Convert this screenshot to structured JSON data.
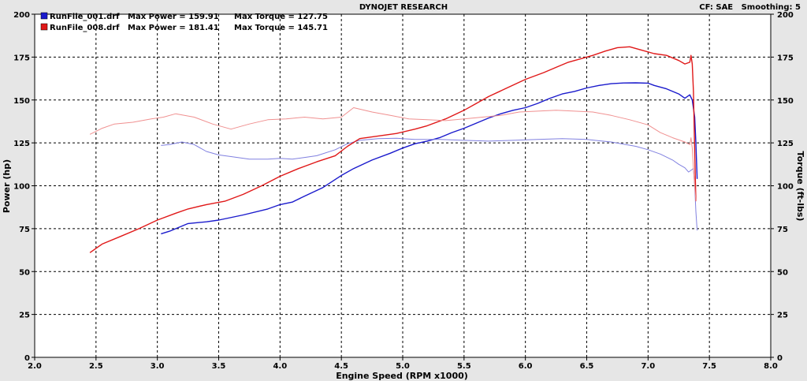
{
  "header": {
    "title": "DYNOJET RESEARCH",
    "settings": "CF: SAE   Smoothing: 5"
  },
  "legend": [
    {
      "file": "RunFile_001.drf",
      "power_text": "Max Power = 159.91",
      "torque_text": "Max Torque = 127.75",
      "color": "#1a1acc"
    },
    {
      "file": "RunFile_008.drf",
      "power_text": "Max Power = 181.41",
      "torque_text": "Max Torque = 145.71",
      "color": "#e01818"
    }
  ],
  "colors": {
    "run1_power": "#1a1acc",
    "run1_torque": "#8080e0",
    "run2_power": "#e01818",
    "run2_torque": "#f09090",
    "plot_bg": "#ffffff",
    "frame_bg": "#e6e6e6",
    "grid": "#000000"
  },
  "chart_data": {
    "type": "line",
    "title": "DYNOJET RESEARCH",
    "xlabel": "Engine Speed (RPM x1000)",
    "ylabel_left": "Power (hp)",
    "ylabel_right": "Torque (ft-lbs)",
    "xlim": [
      2.0,
      8.0
    ],
    "ylim": [
      0,
      200
    ],
    "x_ticks": [
      "2.0",
      "2.5",
      "3.0",
      "3.5",
      "4.0",
      "4.5",
      "5.0",
      "5.5",
      "6.0",
      "6.5",
      "7.0",
      "7.5",
      "8.0"
    ],
    "y_ticks_left": [
      "0",
      "25",
      "50",
      "75",
      "100",
      "125",
      "150",
      "175",
      "200"
    ],
    "y_ticks_right": [
      "0",
      "25",
      "50",
      "75",
      "100",
      "125",
      "150",
      "175",
      "200"
    ],
    "grid": true,
    "legend_position": "top-left",
    "series": [
      {
        "run": "RunFile_001.drf",
        "measure": "power",
        "color_key": "run1_power",
        "width": 1.4,
        "points": [
          [
            3.03,
            72
          ],
          [
            3.1,
            73.5
          ],
          [
            3.25,
            78
          ],
          [
            3.4,
            79
          ],
          [
            3.5,
            80
          ],
          [
            3.7,
            83
          ],
          [
            3.9,
            86.5
          ],
          [
            4.0,
            89
          ],
          [
            4.1,
            90.5
          ],
          [
            4.2,
            94
          ],
          [
            4.35,
            99
          ],
          [
            4.5,
            106
          ],
          [
            4.6,
            110
          ],
          [
            4.75,
            115
          ],
          [
            4.9,
            119
          ],
          [
            5.0,
            122
          ],
          [
            5.1,
            124.5
          ],
          [
            5.2,
            126
          ],
          [
            5.3,
            128
          ],
          [
            5.4,
            131
          ],
          [
            5.5,
            133.5
          ],
          [
            5.6,
            136.5
          ],
          [
            5.7,
            139.5
          ],
          [
            5.8,
            142
          ],
          [
            5.9,
            144
          ],
          [
            6.0,
            145.5
          ],
          [
            6.1,
            148
          ],
          [
            6.2,
            151
          ],
          [
            6.3,
            153.5
          ],
          [
            6.4,
            155
          ],
          [
            6.5,
            157
          ],
          [
            6.6,
            158.5
          ],
          [
            6.7,
            159.5
          ],
          [
            6.8,
            159.9
          ],
          [
            6.9,
            160
          ],
          [
            7.0,
            159.8
          ],
          [
            7.05,
            158.5
          ],
          [
            7.15,
            156.5
          ],
          [
            7.25,
            153.5
          ],
          [
            7.3,
            151
          ],
          [
            7.34,
            153
          ],
          [
            7.36,
            150
          ],
          [
            7.38,
            140
          ],
          [
            7.39,
            125
          ],
          [
            7.4,
            104
          ]
        ]
      },
      {
        "run": "RunFile_001.drf",
        "measure": "torque",
        "color_key": "run1_torque",
        "width": 1.0,
        "points": [
          [
            3.03,
            123.5
          ],
          [
            3.1,
            124
          ],
          [
            3.2,
            125.5
          ],
          [
            3.3,
            124
          ],
          [
            3.4,
            120
          ],
          [
            3.5,
            118
          ],
          [
            3.6,
            117
          ],
          [
            3.75,
            115.5
          ],
          [
            3.9,
            115.5
          ],
          [
            4.0,
            116
          ],
          [
            4.1,
            115.5
          ],
          [
            4.2,
            116.5
          ],
          [
            4.3,
            117.5
          ],
          [
            4.45,
            121
          ],
          [
            4.55,
            124.5
          ],
          [
            4.65,
            126.5
          ],
          [
            4.8,
            127.5
          ],
          [
            4.95,
            127.7
          ],
          [
            5.1,
            127
          ],
          [
            5.3,
            127
          ],
          [
            5.5,
            126.5
          ],
          [
            5.7,
            126
          ],
          [
            5.9,
            126.5
          ],
          [
            6.1,
            127
          ],
          [
            6.3,
            127.5
          ],
          [
            6.5,
            127
          ],
          [
            6.7,
            125.5
          ],
          [
            6.9,
            123
          ],
          [
            7.0,
            121
          ],
          [
            7.1,
            118.5
          ],
          [
            7.2,
            115
          ],
          [
            7.25,
            112.5
          ],
          [
            7.3,
            110.5
          ],
          [
            7.33,
            108
          ],
          [
            7.35,
            109
          ],
          [
            7.37,
            110
          ],
          [
            7.38,
            100
          ],
          [
            7.39,
            85
          ],
          [
            7.4,
            74
          ]
        ]
      },
      {
        "run": "RunFile_008.drf",
        "measure": "power",
        "color_key": "run2_power",
        "width": 1.4,
        "points": [
          [
            2.45,
            61
          ],
          [
            2.55,
            66
          ],
          [
            2.7,
            70.5
          ],
          [
            2.85,
            75
          ],
          [
            3.0,
            80
          ],
          [
            3.15,
            84
          ],
          [
            3.25,
            86.5
          ],
          [
            3.4,
            89
          ],
          [
            3.55,
            91
          ],
          [
            3.7,
            95
          ],
          [
            3.85,
            100
          ],
          [
            4.0,
            105.5
          ],
          [
            4.15,
            110
          ],
          [
            4.3,
            114
          ],
          [
            4.45,
            117.5
          ],
          [
            4.55,
            123
          ],
          [
            4.65,
            127.5
          ],
          [
            4.8,
            129
          ],
          [
            4.95,
            130.5
          ],
          [
            5.1,
            133
          ],
          [
            5.2,
            135
          ],
          [
            5.35,
            139
          ],
          [
            5.5,
            144
          ],
          [
            5.6,
            148
          ],
          [
            5.7,
            152
          ],
          [
            5.85,
            157
          ],
          [
            6.0,
            162
          ],
          [
            6.15,
            166
          ],
          [
            6.25,
            169
          ],
          [
            6.35,
            172
          ],
          [
            6.45,
            174
          ],
          [
            6.55,
            176
          ],
          [
            6.65,
            178.5
          ],
          [
            6.75,
            180.5
          ],
          [
            6.85,
            181
          ],
          [
            6.95,
            179
          ],
          [
            7.05,
            177
          ],
          [
            7.15,
            176
          ],
          [
            7.25,
            173
          ],
          [
            7.3,
            171
          ],
          [
            7.34,
            172
          ],
          [
            7.35,
            176
          ],
          [
            7.36,
            171
          ],
          [
            7.37,
            155
          ],
          [
            7.38,
            120
          ],
          [
            7.39,
            91
          ]
        ]
      },
      {
        "run": "RunFile_008.drf",
        "measure": "torque",
        "color_key": "run2_torque",
        "width": 1.0,
        "points": [
          [
            2.45,
            130
          ],
          [
            2.55,
            133.5
          ],
          [
            2.65,
            136
          ],
          [
            2.8,
            137
          ],
          [
            2.95,
            139
          ],
          [
            3.05,
            140
          ],
          [
            3.15,
            142
          ],
          [
            3.3,
            140
          ],
          [
            3.45,
            136
          ],
          [
            3.6,
            133
          ],
          [
            3.75,
            136
          ],
          [
            3.9,
            138.5
          ],
          [
            4.05,
            139
          ],
          [
            4.2,
            140
          ],
          [
            4.35,
            139
          ],
          [
            4.5,
            140
          ],
          [
            4.6,
            145.5
          ],
          [
            4.75,
            143
          ],
          [
            4.9,
            141
          ],
          [
            5.05,
            139
          ],
          [
            5.2,
            138.5
          ],
          [
            5.35,
            138
          ],
          [
            5.5,
            139
          ],
          [
            5.65,
            140
          ],
          [
            5.8,
            141
          ],
          [
            5.95,
            143
          ],
          [
            6.1,
            143.5
          ],
          [
            6.25,
            144
          ],
          [
            6.4,
            143.5
          ],
          [
            6.55,
            143
          ],
          [
            6.7,
            141
          ],
          [
            6.85,
            138.5
          ],
          [
            7.0,
            135.5
          ],
          [
            7.1,
            131
          ],
          [
            7.2,
            128
          ],
          [
            7.3,
            125.5
          ],
          [
            7.34,
            124
          ],
          [
            7.35,
            128
          ],
          [
            7.36,
            122
          ],
          [
            7.37,
            110
          ],
          [
            7.38,
            100
          ],
          [
            7.39,
            91
          ]
        ]
      }
    ]
  }
}
